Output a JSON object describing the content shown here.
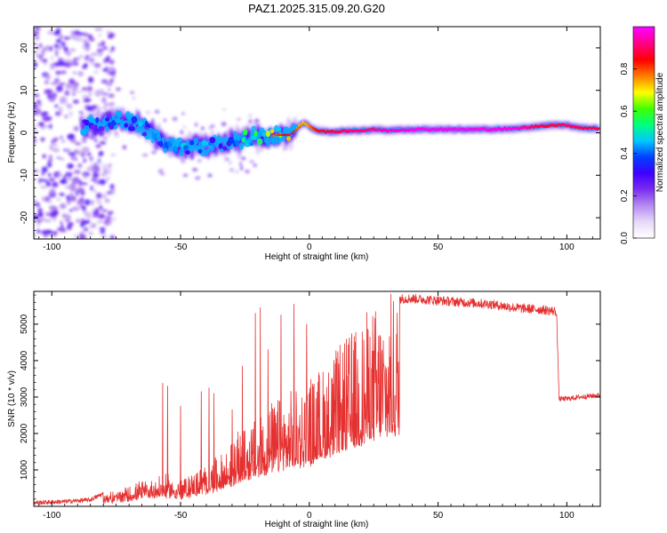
{
  "title": "PAZ1.2025.315.09.20.G20",
  "colors": {
    "trace": "#e53030",
    "axis": "#000000",
    "ridge": "#e8201c"
  },
  "chart_data": [
    {
      "type": "heatmap",
      "xlabel": "Height of straight line (km)",
      "ylabel": "Frequency (Hz)",
      "xlim": [
        -107,
        113
      ],
      "ylim": [
        -25,
        25
      ],
      "x_ticks": [
        -100,
        -50,
        0,
        50,
        100
      ],
      "y_ticks": [
        -20,
        -10,
        0,
        10,
        20
      ],
      "colorbar": {
        "label": "Normalized spectral amplitude",
        "range": [
          0,
          1
        ],
        "ticks": [
          "0.0",
          "0.2",
          "0.4",
          "0.6",
          "0.8"
        ],
        "tick_values": [
          0,
          0.2,
          0.4,
          0.6,
          0.8
        ],
        "colormap": [
          "#ffffff",
          "#e6d8fa",
          "#b48af0",
          "#7a2df0",
          "#4000ff",
          "#0040ff",
          "#00c8ff",
          "#00ff80",
          "#40ff00",
          "#ffff00",
          "#ff8000",
          "#ff0000",
          "#ff0080",
          "#ff00ff"
        ]
      },
      "ridge": {
        "x": [
          -88,
          -80,
          -74,
          -68,
          -62,
          -57,
          -52,
          -47,
          -42,
          -37,
          -32,
          -27,
          -22,
          -17,
          -12,
          -8,
          -5,
          -2,
          0,
          3,
          8,
          15,
          20,
          25,
          30,
          40,
          50,
          60,
          70,
          80,
          88,
          95,
          100,
          105,
          112
        ],
        "freq": [
          1.5,
          2.0,
          3.0,
          2.5,
          0.5,
          -2.5,
          -4.0,
          -3.0,
          -3.5,
          -3.0,
          -2.0,
          -1.8,
          -1.0,
          -0.8,
          -0.5,
          -0.5,
          1.0,
          2.5,
          1.5,
          0.5,
          0.2,
          0.5,
          0.5,
          0.8,
          0.5,
          0.8,
          0.8,
          0.8,
          0.8,
          1.0,
          1.5,
          1.8,
          1.8,
          1.2,
          1.0
        ],
        "amp": [
          0.32,
          0.4,
          0.45,
          0.48,
          0.4,
          0.42,
          0.45,
          0.48,
          0.45,
          0.5,
          0.45,
          0.55,
          0.6,
          0.7,
          0.78,
          0.82,
          0.75,
          0.7,
          0.75,
          0.82,
          0.85,
          0.88,
          0.88,
          0.9,
          0.92,
          0.95,
          0.96,
          0.95,
          0.95,
          0.93,
          0.85,
          0.85,
          0.88,
          0.85,
          0.85
        ]
      },
      "noise_region": {
        "x_from": -107,
        "x_to": -80,
        "note": "low-amplitude purple scatter over full frequency band"
      }
    },
    {
      "type": "line",
      "xlabel": "Height of straight line (km)",
      "ylabel": "SNR (10 * v/v)",
      "xlim": [
        -107,
        113
      ],
      "ylim": [
        0,
        5900
      ],
      "x_ticks": [
        -100,
        -50,
        0,
        50,
        100
      ],
      "y_ticks": [
        1000,
        2000,
        3000,
        4000,
        5000
      ],
      "series": [
        {
          "name": "SNR",
          "envelope_x": [
            -107,
            -95,
            -85,
            -80,
            -75,
            -70,
            -65,
            -60,
            -55,
            -50,
            -45,
            -40,
            -35,
            -30,
            -25,
            -20,
            -15,
            -10,
            -5,
            0,
            5,
            10,
            15,
            20,
            25,
            30,
            35,
            40,
            50,
            60,
            70,
            80,
            90,
            96,
            97,
            100,
            105,
            113
          ],
          "envelope_y": [
            100,
            130,
            180,
            350,
            400,
            500,
            650,
            750,
            800,
            700,
            900,
            1100,
            1300,
            1700,
            2100,
            2300,
            2700,
            2900,
            3100,
            3400,
            3700,
            4100,
            4500,
            4900,
            5300,
            5500,
            5700,
            5700,
            5650,
            5600,
            5550,
            5450,
            5400,
            5350,
            2950,
            2950,
            3000,
            3050
          ],
          "spikes_x": [
            -57,
            -55,
            -50,
            -42,
            -39,
            -37,
            -30,
            -26,
            -21,
            -19,
            -16,
            -11,
            -6,
            -1,
            0.5
          ],
          "spikes_y": [
            3380,
            3300,
            2750,
            3150,
            3250,
            3100,
            2650,
            3850,
            5300,
            5450,
            4300,
            5250,
            5550,
            5000,
            1100
          ]
        }
      ]
    }
  ]
}
